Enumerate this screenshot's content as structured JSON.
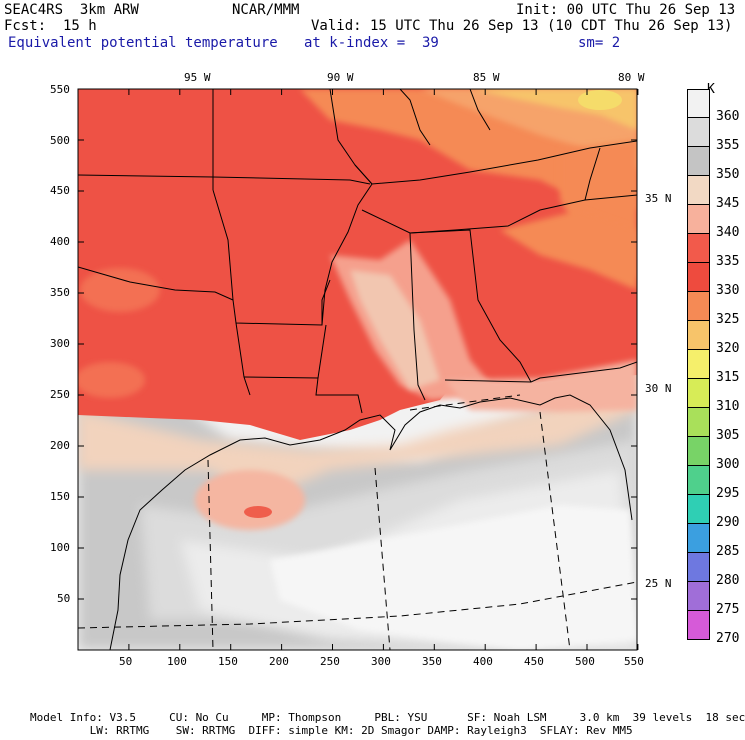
{
  "header": {
    "run": "SEAC4RS  3km ARW",
    "org": "NCAR/MMM",
    "init": "Init: 00 UTC Thu 26 Sep 13",
    "fcst": "Fcst:  15 h",
    "valid": "Valid: 15 UTC Thu 26 Sep 13 (10 CDT Thu 26 Sep 13)",
    "field": "Equivalent potential temperature",
    "level": "at k-index =  39",
    "smooth": "sm= 2"
  },
  "axes": {
    "x_ticks": [
      "50",
      "100",
      "150",
      "200",
      "250",
      "300",
      "350",
      "400",
      "450",
      "500",
      "550"
    ],
    "y_ticks": [
      "550",
      "500",
      "450",
      "400",
      "350",
      "300",
      "250",
      "200",
      "150",
      "100",
      "50"
    ],
    "lon_labels": [
      "95 W",
      "90 W",
      "85 W",
      "80 W"
    ],
    "lat_labels": [
      "35 N",
      "30 N",
      "25 N"
    ]
  },
  "colorbar": {
    "unit": "K",
    "levels": [
      "360",
      "355",
      "350",
      "345",
      "340",
      "335",
      "330",
      "325",
      "320",
      "315",
      "310",
      "305",
      "300",
      "295",
      "290",
      "285",
      "280",
      "275",
      "270"
    ],
    "colors": [
      "#f2f2f2",
      "#dcdcdc",
      "#c4c4c4",
      "#f2d9c4",
      "#f7b19c",
      "#f25a4b",
      "#ee4b3e",
      "#f58a55",
      "#f7c46a",
      "#f5ef6b",
      "#d7ec57",
      "#a9e05a",
      "#78d367",
      "#4fd08c",
      "#2fcfb4",
      "#3b9fe0",
      "#6e78e0",
      "#a06ed8",
      "#d65ad8"
    ]
  },
  "footer": {
    "line1": "Model Info: V3.5     CU: No Cu     MP: Thompson     PBL: YSU      SF: Noah LSM     3.0 km  39 levels  18 sec",
    "line2": "         LW: RRTMG    SW: RRTMG  DIFF: simple KM: 2D Smagor DAMP: Rayleigh3  SFLAY: Rev MM5"
  }
}
